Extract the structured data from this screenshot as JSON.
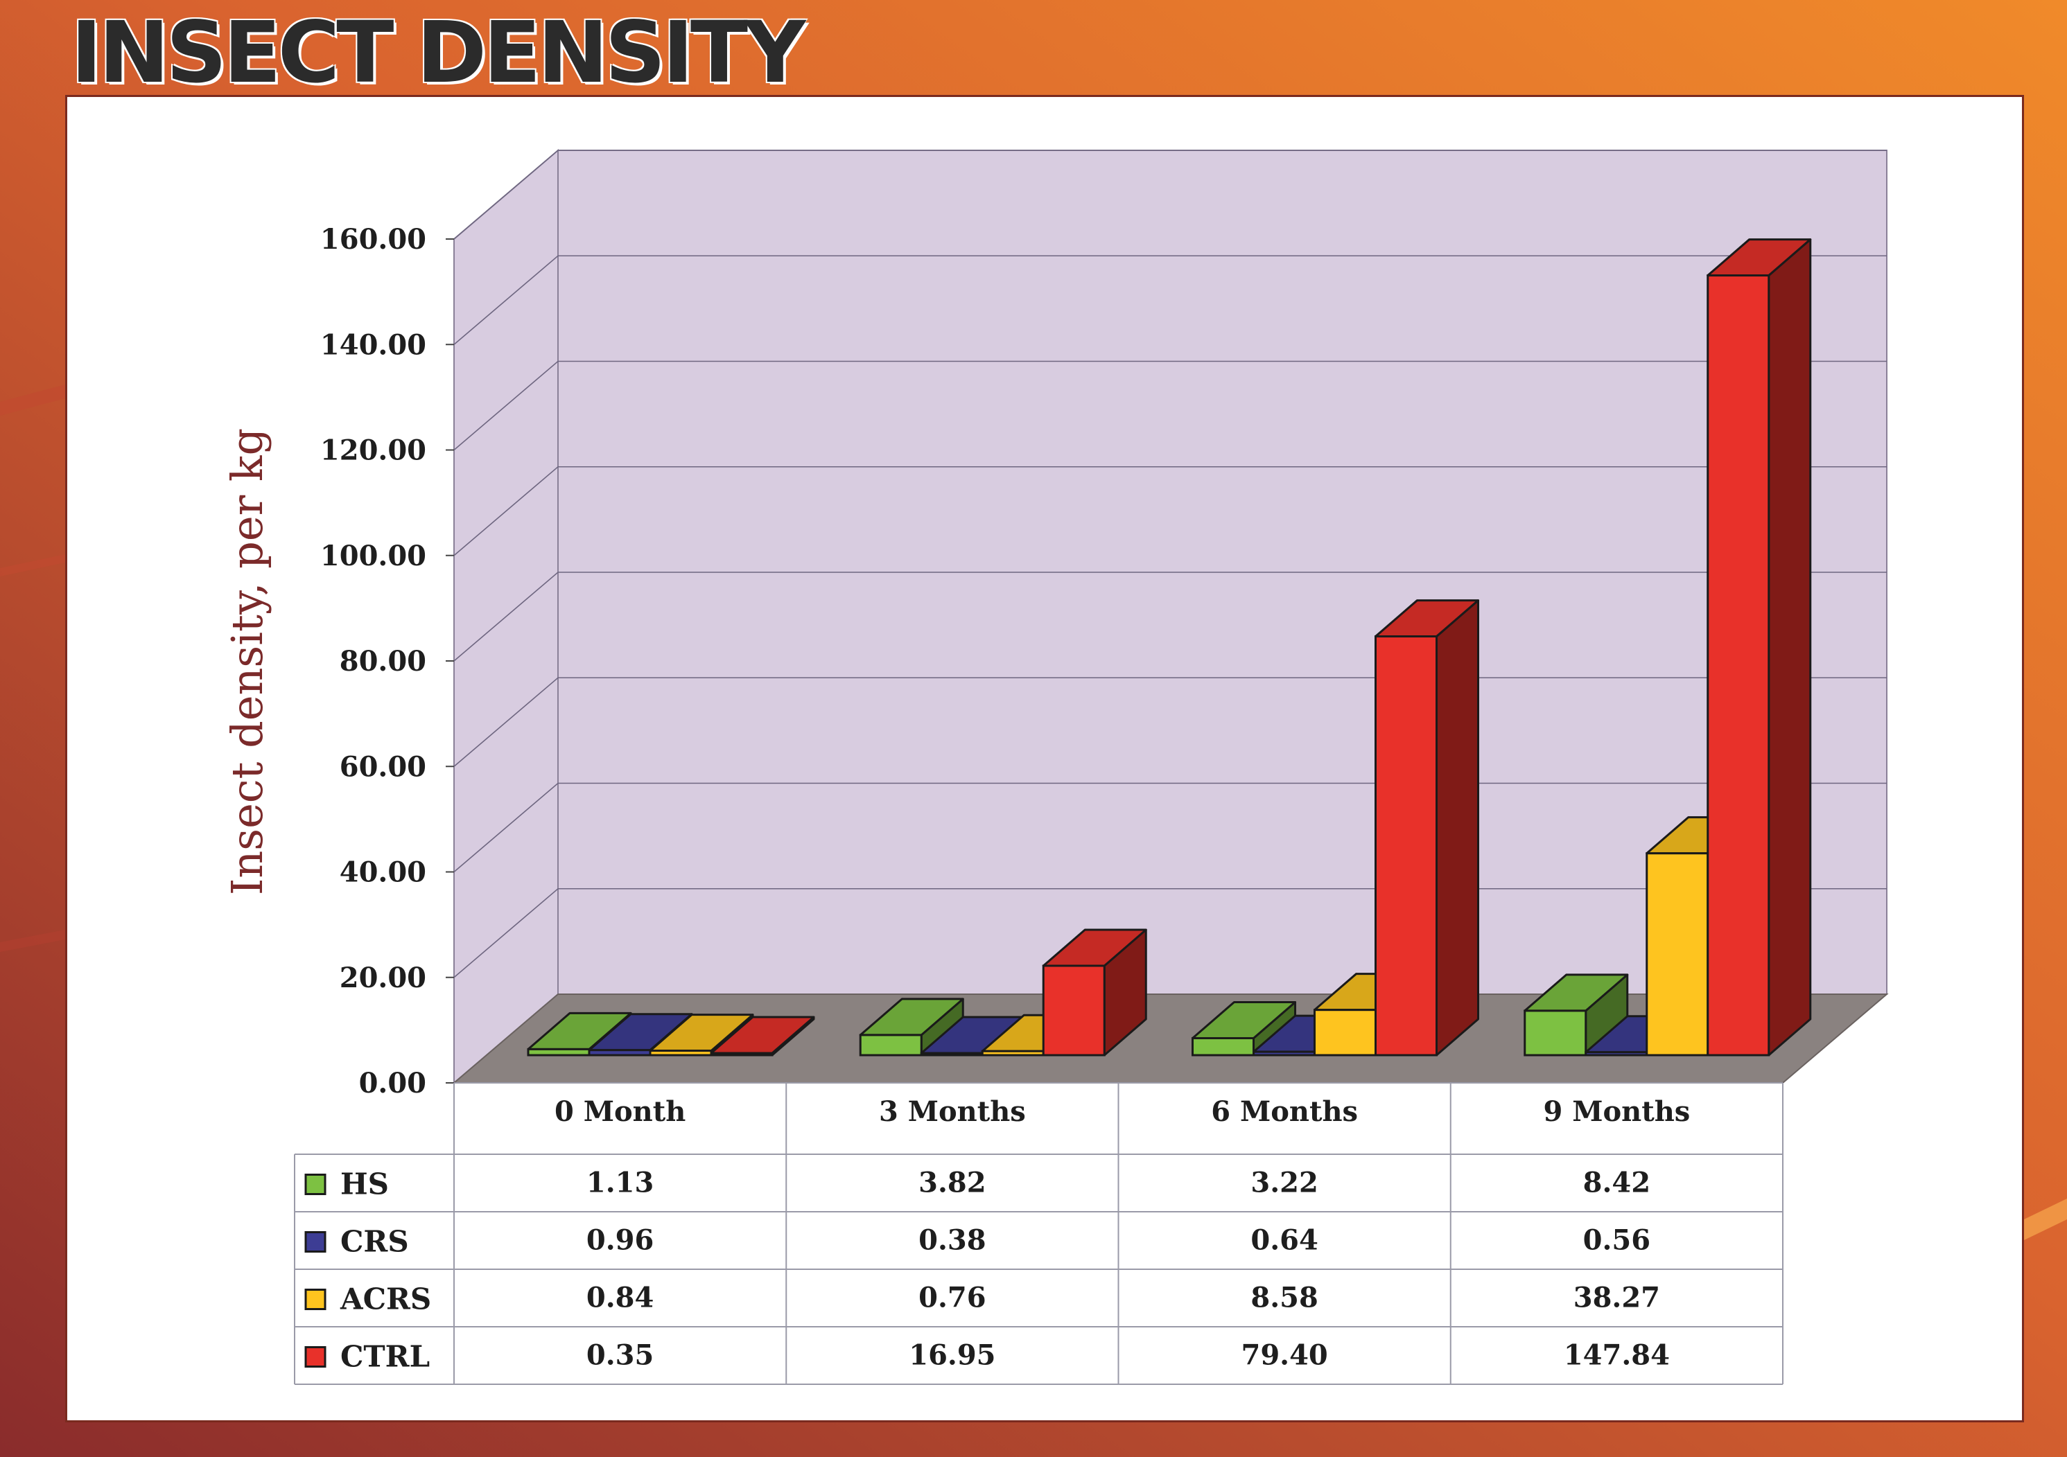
{
  "page": {
    "title": "INSECT DENSITY",
    "colors": {
      "background_light": "#f08a2a",
      "background_dark": "#8a2c2c",
      "panel": "#ffffff",
      "back_wall": "#d8cce0",
      "floor": "#8a8280"
    }
  },
  "chart_data": {
    "type": "bar",
    "variant": "3d-clustered-column-with-data-table",
    "title": "",
    "xlabel": "",
    "ylabel": "Insect density, per kg",
    "ylim": [
      0,
      160
    ],
    "yticks": [
      "0.00",
      "20.00",
      "40.00",
      "60.00",
      "80.00",
      "100.00",
      "120.00",
      "140.00",
      "160.00"
    ],
    "grid": true,
    "legend": "data-table-left",
    "categories": [
      "0 Month",
      "3 Months",
      "6 Months",
      "9 Months"
    ],
    "series": [
      {
        "name": "HS",
        "color": "#7dc142",
        "values": [
          1.13,
          3.82,
          3.22,
          8.42
        ],
        "labels": [
          "1.13",
          "3.82",
          "3.22",
          "8.42"
        ]
      },
      {
        "name": "CRS",
        "color": "#3d3d94",
        "values": [
          0.96,
          0.38,
          0.64,
          0.56
        ],
        "labels": [
          "0.96",
          "0.38",
          "0.64",
          "0.56"
        ]
      },
      {
        "name": "ACRS",
        "color": "#fec41f",
        "values": [
          0.84,
          0.76,
          8.58,
          38.27
        ],
        "labels": [
          "0.84",
          "0.76",
          "8.58",
          "38.27"
        ]
      },
      {
        "name": "CTRL",
        "color": "#e8312a",
        "values": [
          0.35,
          16.95,
          79.4,
          147.84
        ],
        "labels": [
          "0.35",
          "16.95",
          "79.40",
          "147.84"
        ]
      }
    ]
  }
}
